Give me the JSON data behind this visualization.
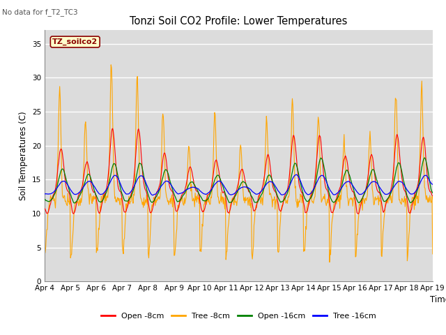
{
  "title": "Tonzi Soil CO2 Profile: Lower Temperatures",
  "subtitle": "No data for f_T2_TC3",
  "ylabel": "Soil Temperatures (C)",
  "xlabel": "Time",
  "ylim": [
    0,
    37
  ],
  "yticks": [
    0,
    5,
    10,
    15,
    20,
    25,
    30,
    35
  ],
  "x_labels": [
    "Apr 4",
    "Apr 5",
    "Apr 6",
    "Apr 7",
    "Apr 8",
    "Apr 9",
    "Apr 10",
    "Apr 11",
    "Apr 12",
    "Apr 13",
    "Apr 14",
    "Apr 15",
    "Apr 16",
    "Apr 17",
    "Apr 18",
    "Apr 19"
  ],
  "legend_entries": [
    "Open -8cm",
    "Tree -8cm",
    "Open -16cm",
    "Tree -16cm"
  ],
  "legend_colors": [
    "red",
    "orange",
    "green",
    "blue"
  ],
  "box_label": "TZ_soilco2",
  "bg_color": "#dcdcdc",
  "line_colors": [
    "red",
    "orange",
    "green",
    "blue"
  ],
  "n_points": 720,
  "figwidth": 6.4,
  "figheight": 4.8,
  "dpi": 100
}
